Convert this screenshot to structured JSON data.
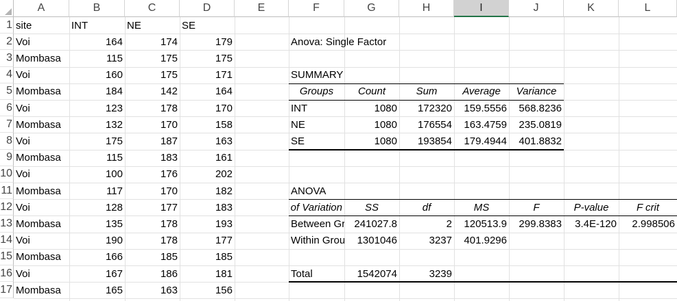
{
  "columns": [
    "A",
    "B",
    "C",
    "D",
    "E",
    "F",
    "G",
    "H",
    "I",
    "J",
    "K",
    "L"
  ],
  "selected_column": "I",
  "rows": [
    "1",
    "2",
    "3",
    "4",
    "5",
    "6",
    "7",
    "8",
    "9",
    "10",
    "11",
    "12",
    "13",
    "14",
    "15",
    "16",
    "17"
  ],
  "data_headers": [
    "site",
    "INT",
    "NE",
    "SE"
  ],
  "data_rows": [
    [
      "Voi",
      "164",
      "174",
      "179"
    ],
    [
      "Mombasa",
      "115",
      "175",
      "175"
    ],
    [
      "Voi",
      "160",
      "175",
      "171"
    ],
    [
      "Mombasa",
      "184",
      "142",
      "164"
    ],
    [
      "Voi",
      "123",
      "178",
      "170"
    ],
    [
      "Mombasa",
      "132",
      "170",
      "158"
    ],
    [
      "Voi",
      "175",
      "187",
      "163"
    ],
    [
      "Mombasa",
      "115",
      "183",
      "161"
    ],
    [
      "Voi",
      "100",
      "176",
      "202"
    ],
    [
      "Mombasa",
      "117",
      "170",
      "182"
    ],
    [
      "Voi",
      "128",
      "177",
      "183"
    ],
    [
      "Mombasa",
      "135",
      "178",
      "193"
    ],
    [
      "Voi",
      "190",
      "178",
      "177"
    ],
    [
      "Mombasa",
      "166",
      "185",
      "185"
    ],
    [
      "Voi",
      "167",
      "186",
      "181"
    ],
    [
      "Mombasa",
      "165",
      "163",
      "156"
    ]
  ],
  "anova": {
    "title": "Anova: Single Factor",
    "summary_label": "SUMMARY",
    "summary_headers": [
      "Groups",
      "Count",
      "Sum",
      "Average",
      "Variance"
    ],
    "summary_rows": [
      [
        "INT",
        "1080",
        "172320",
        "159.5556",
        "568.8236"
      ],
      [
        "NE",
        "1080",
        "176554",
        "163.4759",
        "235.0819"
      ],
      [
        "SE",
        "1080",
        "193854",
        "179.4944",
        "401.8832"
      ]
    ],
    "anova_label": "ANOVA",
    "anova_headers": [
      "Source of Variation",
      "SS",
      "df",
      "MS",
      "F",
      "P-value",
      "F crit"
    ],
    "anova_rows": [
      [
        "Between Groups",
        "241027.8",
        "2",
        "120513.9",
        "299.8383",
        "3.4E-120",
        "2.998506"
      ],
      [
        "Within Groups",
        "1301046",
        "3237",
        "401.9296",
        "",
        "",
        ""
      ]
    ],
    "total_row": [
      "Total",
      "1542074",
      "3239"
    ]
  }
}
